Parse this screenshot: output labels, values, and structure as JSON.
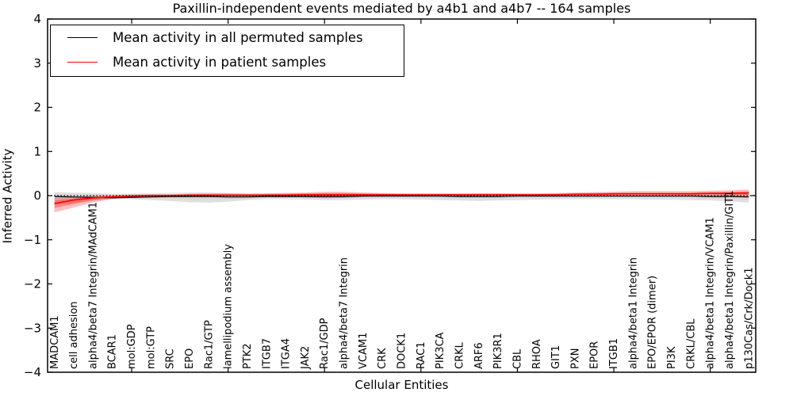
{
  "title": "Paxillin-independent events mediated by a4b1 and a4b7 -- 164 samples",
  "axes": {
    "x_label": "Cellular Entities",
    "y_label": "Inferred Activity"
  },
  "legend": {
    "items": [
      {
        "label": "Mean activity in all permuted samples",
        "color": "#000000"
      },
      {
        "label": "Mean activity in patient samples",
        "color": "#ff0000"
      }
    ]
  },
  "colors": {
    "permuted_line": "#000000",
    "patient_line": "#ff0000",
    "permuted_band": "#999999",
    "patient_band": "#ff0000",
    "frame": "#000000"
  },
  "chart_data": {
    "type": "line",
    "title": "Paxillin-independent events mediated by a4b1 and a4b7 -- 164 samples",
    "xlabel": "Cellular Entities",
    "ylabel": "Inferred Activity",
    "ylim": [
      -4,
      4
    ],
    "yticks": [
      -4,
      -3,
      -2,
      -1,
      0,
      1,
      2,
      3,
      4
    ],
    "x_major_tick_indices": [
      4,
      9,
      14,
      19,
      24,
      29,
      34
    ],
    "grid": false,
    "zero_line": true,
    "legend_position": "upper left",
    "categories": [
      "MADCAM1",
      "cell adhesion",
      "alpha4/beta7 Integrin/MAdCAM1",
      "BCAR1",
      "mol:GDP",
      "mol:GTP",
      "SRC",
      "EPO",
      "Rac1/GTP",
      "lamellipodium assembly",
      "PTK2",
      "ITGB7",
      "ITGA4",
      "JAK2",
      "Rac1/GDP",
      "alpha4/beta7 Integrin",
      "VCAM1",
      "CRK",
      "DOCK1",
      "RAC1",
      "PIK3CA",
      "CRKL",
      "ARF6",
      "PIK3R1",
      "CBL",
      "RHOA",
      "GIT1",
      "PXN",
      "EPOR",
      "ITGB1",
      "alpha4/beta1 Integrin",
      "EPO/EPOR (dimer)",
      "PI3K",
      "CRKL/CBL",
      "alpha4/beta1 Integrin/VCAM1",
      "alpha4/beta1 Integrin/Paxillin/GIT1",
      "p130Cas/Crk/Dock1"
    ],
    "series": [
      {
        "name": "Mean activity in all permuted samples",
        "color": "#000000",
        "values": [
          -0.02,
          -0.03,
          -0.04,
          -0.05,
          -0.04,
          -0.03,
          -0.02,
          -0.02,
          -0.02,
          -0.03,
          -0.03,
          -0.02,
          -0.02,
          -0.02,
          -0.02,
          -0.02,
          -0.01,
          -0.01,
          -0.01,
          -0.01,
          -0.01,
          -0.02,
          -0.02,
          -0.02,
          -0.01,
          -0.01,
          -0.01,
          -0.01,
          -0.01,
          -0.01,
          -0.01,
          -0.01,
          -0.01,
          -0.01,
          -0.02,
          -0.02,
          -0.03
        ]
      },
      {
        "name": "Mean activity in patient samples",
        "color": "#ff0000",
        "values": [
          -0.18,
          -0.1,
          -0.05,
          -0.03,
          -0.01,
          0.0,
          0.0,
          0.01,
          0.01,
          0.01,
          0.01,
          0.01,
          0.01,
          0.02,
          0.02,
          0.02,
          0.02,
          0.02,
          0.02,
          0.02,
          0.02,
          0.02,
          0.02,
          0.02,
          0.02,
          0.02,
          0.02,
          0.03,
          0.03,
          0.04,
          0.04,
          0.04,
          0.04,
          0.04,
          0.05,
          0.05,
          0.06
        ]
      }
    ],
    "bands": [
      {
        "name": "permuted-activity-range",
        "color": "#999999",
        "low": [
          -0.2,
          -0.18,
          -0.12,
          -0.07,
          -0.08,
          -0.1,
          -0.12,
          -0.15,
          -0.16,
          -0.14,
          -0.1,
          -0.08,
          -0.08,
          -0.09,
          -0.1,
          -0.1,
          -0.09,
          -0.08,
          -0.08,
          -0.09,
          -0.1,
          -0.11,
          -0.12,
          -0.11,
          -0.1,
          -0.09,
          -0.08,
          -0.08,
          -0.08,
          -0.08,
          -0.08,
          -0.09,
          -0.09,
          -0.1,
          -0.11,
          -0.13,
          -0.16
        ],
        "high": [
          0.08,
          0.07,
          0.06,
          0.04,
          0.05,
          0.05,
          0.06,
          0.07,
          0.07,
          0.06,
          0.05,
          0.05,
          0.05,
          0.05,
          0.05,
          0.05,
          0.05,
          0.04,
          0.04,
          0.04,
          0.04,
          0.04,
          0.05,
          0.05,
          0.04,
          0.04,
          0.04,
          0.04,
          0.04,
          0.04,
          0.04,
          0.04,
          0.04,
          0.05,
          0.05,
          0.06,
          0.07
        ]
      },
      {
        "name": "patient-activity-range",
        "color": "#ff0000",
        "low": [
          -0.38,
          -0.27,
          -0.15,
          -0.08,
          -0.05,
          -0.04,
          -0.03,
          -0.03,
          -0.02,
          -0.02,
          -0.02,
          -0.03,
          -0.03,
          -0.04,
          -0.06,
          -0.05,
          -0.03,
          -0.02,
          -0.01,
          -0.01,
          -0.01,
          -0.01,
          -0.01,
          -0.01,
          -0.01,
          -0.01,
          -0.01,
          0.0,
          0.0,
          0.0,
          0.01,
          0.01,
          0.01,
          0.0,
          0.0,
          -0.01,
          -0.02
        ],
        "high": [
          -0.05,
          -0.03,
          0.0,
          0.01,
          0.02,
          0.03,
          0.03,
          0.04,
          0.05,
          0.05,
          0.04,
          0.05,
          0.06,
          0.07,
          0.09,
          0.09,
          0.07,
          0.06,
          0.05,
          0.05,
          0.05,
          0.05,
          0.05,
          0.05,
          0.05,
          0.05,
          0.06,
          0.07,
          0.08,
          0.09,
          0.1,
          0.1,
          0.1,
          0.1,
          0.11,
          0.12,
          0.14
        ]
      }
    ]
  }
}
